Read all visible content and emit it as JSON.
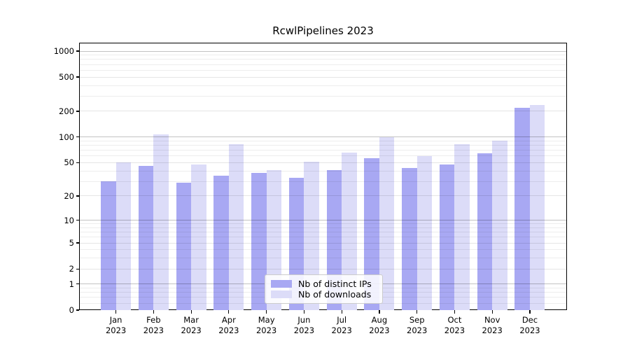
{
  "chart_data": {
    "type": "bar",
    "title": "RcwlPipelines 2023",
    "categories": [
      "Jan 2023",
      "Feb 2023",
      "Mar 2023",
      "Apr 2023",
      "May 2023",
      "Jun 2023",
      "Jul 2023",
      "Aug 2023",
      "Sep 2023",
      "Oct 2023",
      "Nov 2023",
      "Dec 2023"
    ],
    "series": [
      {
        "name": "Nb of distinct IPs",
        "color": "#a8a8f3",
        "values": [
          30,
          46,
          29,
          35,
          38,
          33,
          41,
          56,
          43,
          48,
          64,
          218
        ]
      },
      {
        "name": "Nb of downloads",
        "color": "#dcdcf8",
        "values": [
          50,
          107,
          48,
          82,
          41,
          51,
          66,
          100,
          60,
          83,
          90,
          236
        ]
      }
    ],
    "y_scale": "log1p",
    "ylim": [
      0,
      1252
    ],
    "y_ticks": [
      0,
      1,
      2,
      5,
      10,
      20,
      50,
      100,
      200,
      500,
      1000
    ],
    "y_tick_labels": [
      "0",
      "1",
      "2",
      "5",
      "10",
      "20",
      "50",
      "100",
      "200",
      "500",
      "1000"
    ],
    "y_major_gridlines": [
      1,
      10,
      100,
      1000
    ],
    "y_minor_gridlines": [
      0.2,
      0.4,
      0.6,
      0.8,
      3,
      4,
      6,
      7,
      8,
      9,
      30,
      40,
      60,
      70,
      80,
      90,
      300,
      400,
      600,
      700,
      800,
      900
    ],
    "grid": true,
    "legend_position": "lower center",
    "xlabel": "",
    "ylabel": ""
  }
}
